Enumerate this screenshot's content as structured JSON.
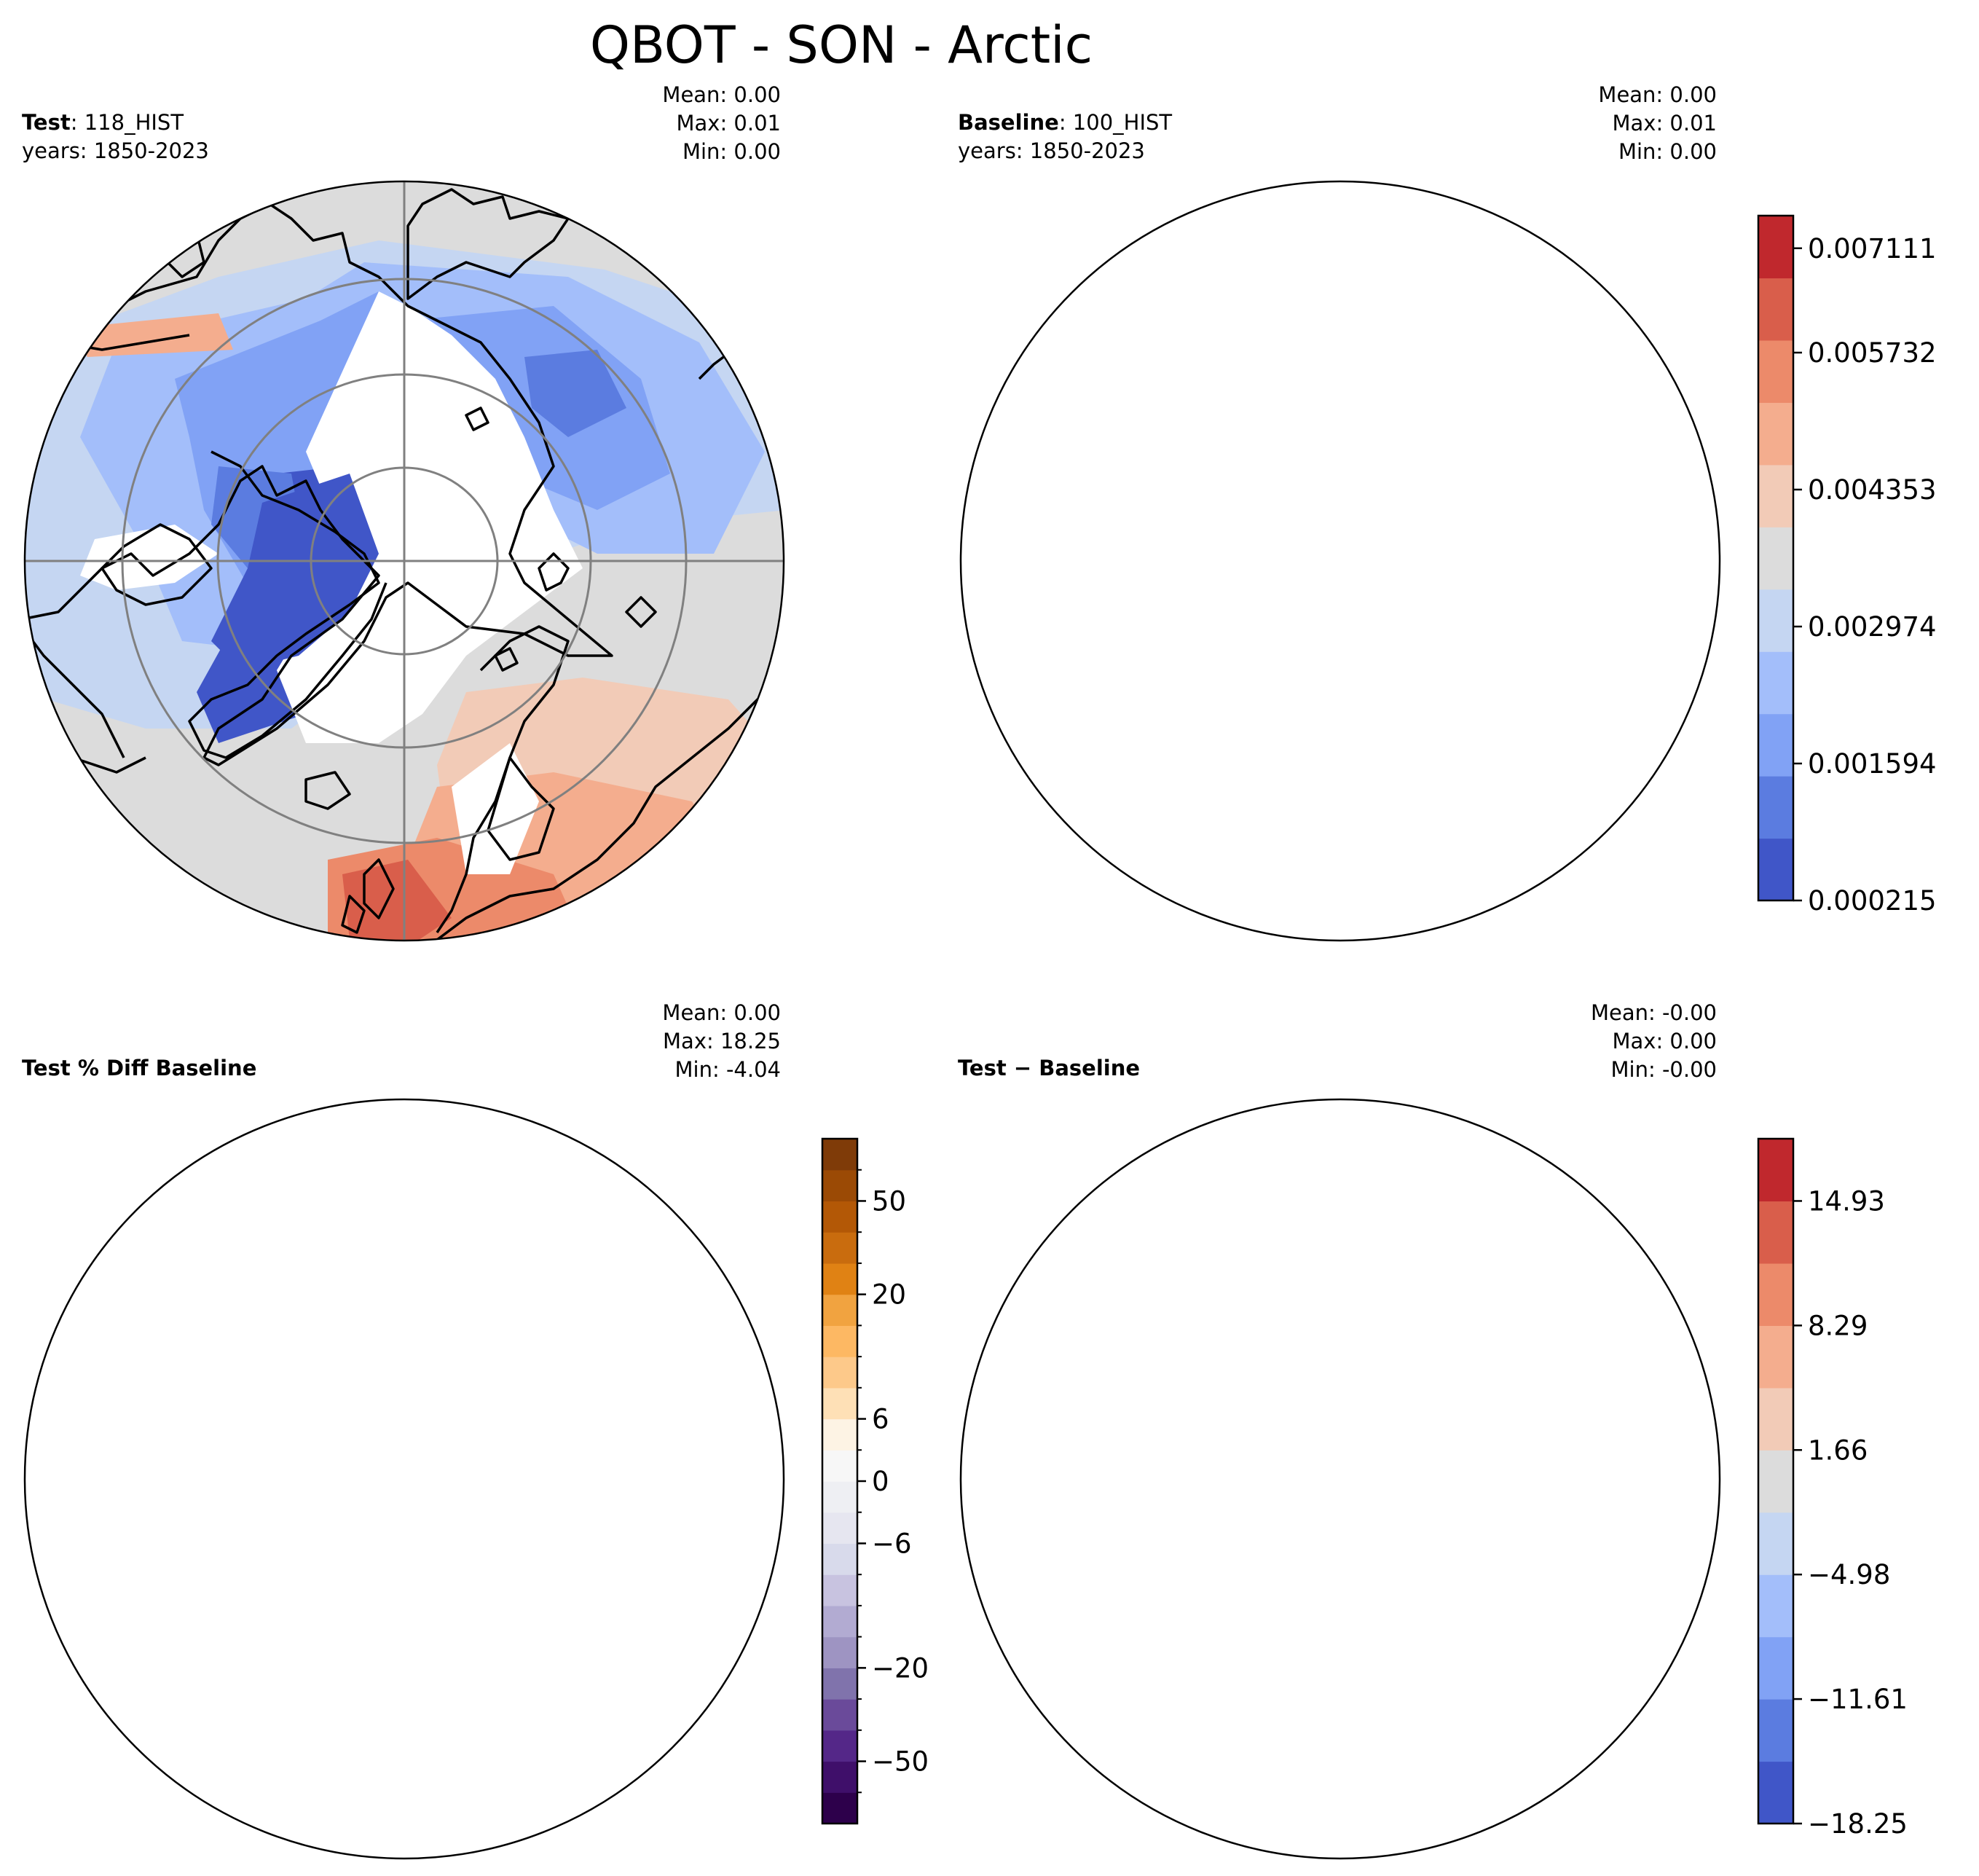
{
  "figure": {
    "title": "QBOT - SON - Arctic"
  },
  "colors": {
    "coast": "#000000",
    "grid": "#808080",
    "land_rim": "#000000",
    "gray_fill": "#dcdcdc",
    "pct_fill": "#eeeff3"
  },
  "panels": [
    {
      "id": "test",
      "label_bold": "Test",
      "label_rest": ": 118_HIST",
      "years": "years: 1850-2023",
      "stats": {
        "mean": "Mean:  0.00",
        "max": "Max:  0.01",
        "min": "Min:  0.00"
      }
    },
    {
      "id": "baseline",
      "label_bold": "Baseline",
      "label_rest": ": 100_HIST",
      "years": "years: 1850-2023",
      "stats": {
        "mean": "Mean:  0.00",
        "max": "Max:  0.01",
        "min": "Min:  0.00"
      }
    },
    {
      "id": "pctdiff",
      "label_bold": "Test % Diff Baseline",
      "label_rest": "",
      "years": "",
      "stats": {
        "mean": "Mean:  0.00",
        "max": "Max: 18.25",
        "min": "Min: -4.04"
      }
    },
    {
      "id": "diff",
      "label_bold": "Test",
      "label_rest": " − Baseline",
      "years": "",
      "stats": {
        "mean": "Mean: -0.00",
        "max": "Max:  0.00",
        "min": "Min: -0.00"
      }
    }
  ],
  "chart_data": [
    {
      "type": "heatmap",
      "projection": "north-polar-stereographic",
      "title": "Test: 118_HIST",
      "levels": [
        0.000215,
        0.00056,
        0.000905,
        0.00125,
        0.001594,
        0.001939,
        0.002284,
        0.002629,
        0.002974,
        0.003319,
        0.003664,
        0.004009,
        0.004353,
        0.004698,
        0.005043,
        0.005388,
        0.005732,
        0.006077,
        0.006422,
        0.006767,
        0.007111,
        0.007456
      ],
      "colorbar_ticks": [
        "0.000215",
        "0.001594",
        "0.002974",
        "0.004353",
        "0.005732",
        "0.007111"
      ],
      "colormap": [
        "#4056c8",
        "#5b7ce0",
        "#81a2f5",
        "#a3befa",
        "#c5d6f2",
        "#dcdcdc",
        "#f2cbb7",
        "#f4ad8e",
        "#ec8a6a",
        "#d95e4b",
        "#c0282d"
      ]
    },
    {
      "type": "heatmap",
      "projection": "north-polar-stereographic",
      "title": "Baseline: 100_HIST",
      "levels": [
        0.000215,
        0.00056,
        0.000905,
        0.00125,
        0.001594,
        0.001939,
        0.002284,
        0.002629,
        0.002974,
        0.003319,
        0.003664,
        0.004009,
        0.004353,
        0.004698,
        0.005043,
        0.005388,
        0.005732,
        0.006077,
        0.006422,
        0.006767,
        0.007111,
        0.007456
      ],
      "colorbar_ticks": [
        "0.000215",
        "0.001594",
        "0.002974",
        "0.004353",
        "0.005732",
        "0.007111"
      ]
    },
    {
      "type": "heatmap",
      "projection": "north-polar-stereographic",
      "title": "Test % Diff Baseline",
      "levels": [
        -100,
        -70,
        -50,
        -40,
        -30,
        -20,
        -15,
        -10,
        -8,
        -6,
        -4,
        -2,
        -1,
        0,
        1,
        2,
        4,
        6,
        8,
        10,
        15,
        20,
        30,
        40,
        50,
        70,
        100
      ],
      "colorbar_ticks": [
        "−50",
        "−20",
        "−6",
        "0",
        "6",
        "20",
        "50"
      ],
      "colormap": [
        "#2d004b",
        "#3f0f6a",
        "#542788",
        "#6a4a9a",
        "#8073ac",
        "#9e94c2",
        "#b2abd2",
        "#c8c3e0",
        "#d8daeb",
        "#e6e6f0",
        "#eeeff3",
        "#f7f7f7",
        "#fdf3e4",
        "#fee0b6",
        "#fdc98a",
        "#fdb863",
        "#f1a340",
        "#e08214",
        "#c96c0e",
        "#b35806",
        "#9b4a05",
        "#7f3b08"
      ]
    },
    {
      "type": "heatmap",
      "projection": "north-polar-stereographic",
      "title": "Test − Baseline",
      "levels": [
        -18.25,
        -14.93,
        -11.61,
        -8.29,
        -4.98,
        -1.66,
        1.66,
        4.98,
        8.29,
        11.61,
        14.93,
        18.25
      ],
      "colorbar_ticks": [
        "−18.25",
        "−11.61",
        "−4.98",
        "1.66",
        "8.29",
        "14.93"
      ],
      "colormap": [
        "#4056c8",
        "#5b7ce0",
        "#81a2f5",
        "#a3befa",
        "#c5d6f2",
        "#dcdcdc",
        "#f2cbb7",
        "#f4ad8e",
        "#ec8a6a",
        "#d95e4b",
        "#c0282d"
      ]
    }
  ]
}
